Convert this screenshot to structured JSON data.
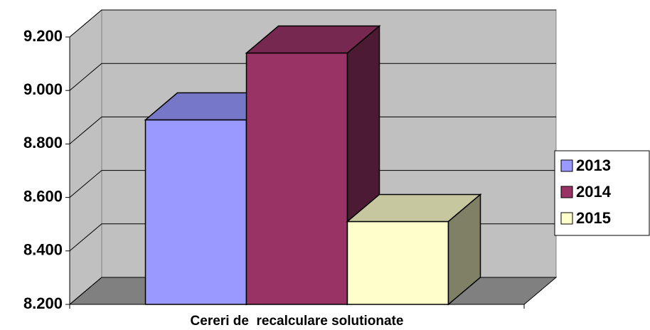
{
  "chart_data": {
    "type": "bar3d",
    "categories": [
      "Cereri de  recalculare solutionate"
    ],
    "series": [
      {
        "name": "2013",
        "color": "#9999ff",
        "values": [
          8890
        ]
      },
      {
        "name": "2014",
        "color": "#993366",
        "values": [
          9140
        ]
      },
      {
        "name": "2015",
        "color": "#ffffcc",
        "values": [
          8510
        ]
      }
    ],
    "ylim": [
      8200,
      9200
    ],
    "yticks": [
      {
        "value": 8200,
        "label": "8.200"
      },
      {
        "value": 8400,
        "label": "8.400"
      },
      {
        "value": 8600,
        "label": "8.600"
      },
      {
        "value": 8800,
        "label": "8.800"
      },
      {
        "value": 9000,
        "label": "9.000"
      },
      {
        "value": 9200,
        "label": "9.200"
      }
    ],
    "grid": true,
    "legend": "right"
  }
}
